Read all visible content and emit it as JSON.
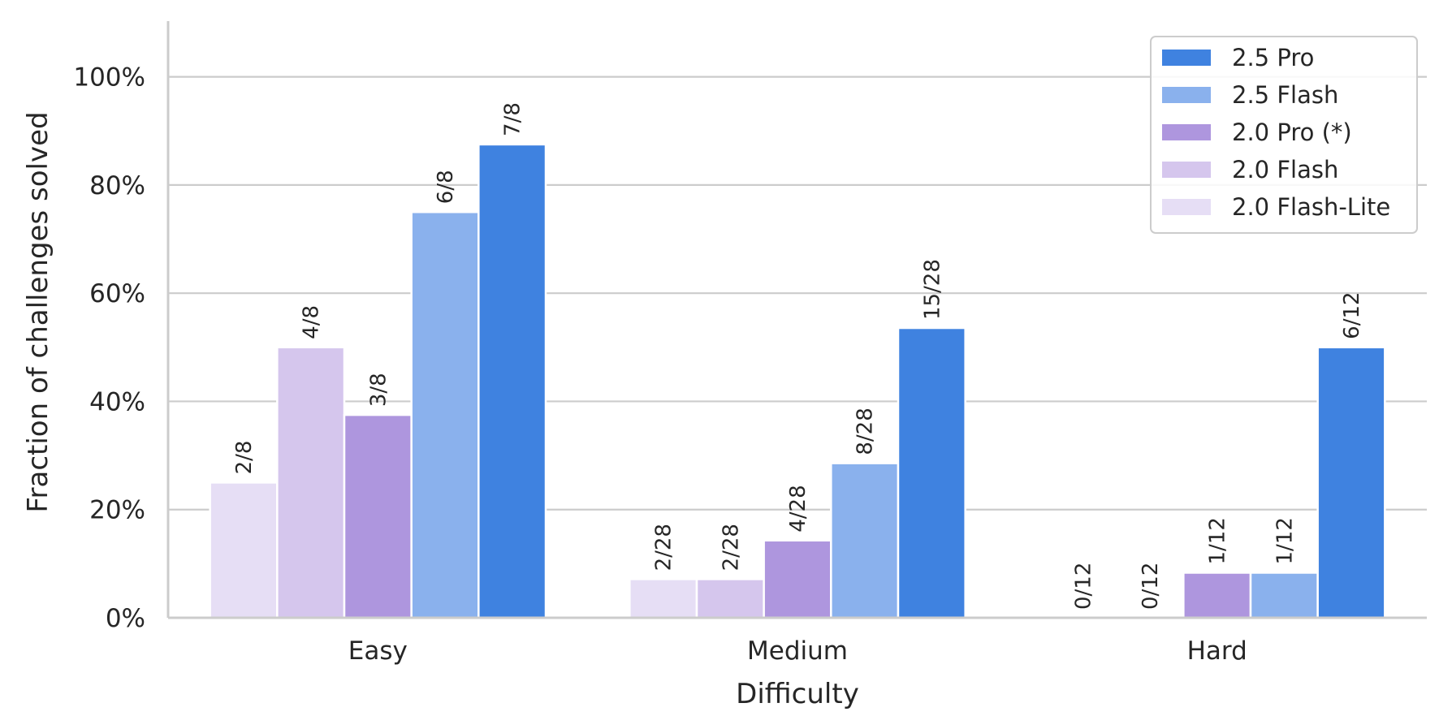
{
  "chart_data": {
    "type": "bar",
    "xlabel": "Difficulty",
    "ylabel": "Fraction of challenges solved",
    "categories": [
      "Easy",
      "Medium",
      "Hard"
    ],
    "ylim": [
      0,
      1.1
    ],
    "yticks": [
      0,
      0.2,
      0.4,
      0.6,
      0.8,
      1.0
    ],
    "ytick_labels": [
      "0%",
      "20%",
      "40%",
      "60%",
      "80%",
      "100%"
    ],
    "grid": "horizontal",
    "legend_position": "top-right",
    "series": [
      {
        "name": "2.0 Flash-Lite",
        "color": "#e6def5",
        "values": [
          0.25,
          0.0714,
          0.0
        ],
        "labels": [
          "2/8",
          "2/28",
          "0/12"
        ]
      },
      {
        "name": "2.0 Flash",
        "color": "#d5c6ed",
        "values": [
          0.5,
          0.0714,
          0.0
        ],
        "labels": [
          "4/8",
          "2/28",
          "0/12"
        ]
      },
      {
        "name": "2.0 Pro (*)",
        "color": "#ae96de",
        "values": [
          0.375,
          0.1429,
          0.0833
        ],
        "labels": [
          "3/8",
          "4/28",
          "1/12"
        ]
      },
      {
        "name": "2.5 Flash",
        "color": "#8ab1ed",
        "values": [
          0.75,
          0.2857,
          0.0833
        ],
        "labels": [
          "6/8",
          "8/28",
          "1/12"
        ]
      },
      {
        "name": "2.5 Pro",
        "color": "#3f82e0",
        "values": [
          0.875,
          0.5357,
          0.5
        ],
        "labels": [
          "7/8",
          "15/28",
          "6/12"
        ]
      }
    ],
    "legend_order": [
      "2.5 Pro",
      "2.5 Flash",
      "2.0 Pro (*)",
      "2.0 Flash",
      "2.0 Flash-Lite"
    ]
  }
}
